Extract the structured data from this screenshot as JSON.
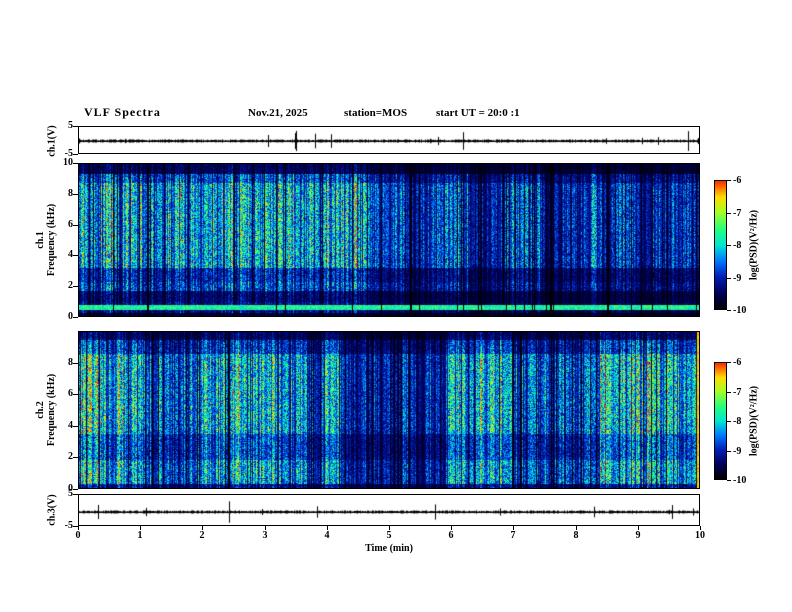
{
  "header": {
    "title": "VLF Spectra",
    "date": "Nov.21, 2025",
    "station": "station=MOS",
    "start_ut": "start UT =  20:0 :1"
  },
  "chart_data": [
    {
      "id": "ch1_voltage_strip",
      "type": "line",
      "ylabel": "ch.1(V)",
      "ylim": [
        -5,
        5
      ],
      "yticks": [
        5,
        -5
      ],
      "xlim": [
        0,
        10
      ],
      "note": "near-flat waveform around 0 V with small noise spikes"
    },
    {
      "id": "ch1_spectrogram",
      "type": "heatmap",
      "ylabel": "ch.1 Frequency (kHz)",
      "ylabel_lines": [
        "ch.1",
        "Frequency (kHz)"
      ],
      "ylim": [
        0,
        10
      ],
      "yticks": [
        10,
        8,
        6,
        4,
        2,
        0
      ],
      "xlim": [
        0,
        10
      ],
      "colorbar": {
        "label": "log(PSD)(V²/Hz)",
        "ticks": [
          -6,
          -7,
          -8,
          -9,
          -10
        ],
        "vmax": -6,
        "vmin": -10
      },
      "note": "dense vertical sferic bursts 1-9.5 kHz over black background, persistent narrow emission line near 0.6 kHz"
    },
    {
      "id": "ch2_spectrogram",
      "type": "heatmap",
      "ylabel": "ch.2 Frequency (kHz)",
      "ylabel_lines": [
        "ch.2",
        "Frequency (kHz)"
      ],
      "ylim": [
        0,
        10
      ],
      "yticks": [
        8,
        6,
        4,
        2,
        0
      ],
      "xlim": [
        0,
        10
      ],
      "colorbar": {
        "label": "log(PSD)(V²/Hz)",
        "ticks": [
          -6,
          -7,
          -8,
          -9,
          -10
        ],
        "vmax": -6,
        "vmin": -10
      },
      "note": "dense vertical sferic bursts 0.5-9 kHz, bright column at right edge"
    },
    {
      "id": "ch3_voltage_strip",
      "type": "line",
      "ylabel": "ch.3(V)",
      "ylim": [
        -5,
        5
      ],
      "yticks": [
        5,
        -5
      ],
      "xlim": [
        0,
        10
      ],
      "xticks": [
        0,
        1,
        2,
        3,
        4,
        5,
        6,
        7,
        8,
        9,
        10
      ],
      "xlabel": "Time (min)"
    }
  ],
  "colors": {
    "background": "#ffffff",
    "frame": "#000000",
    "colormap": [
      "#000000",
      "#00005a",
      "#001eb4",
      "#0078ff",
      "#00e6d2",
      "#28ff78",
      "#a0ff28",
      "#ffdc00",
      "#ff2800"
    ]
  }
}
